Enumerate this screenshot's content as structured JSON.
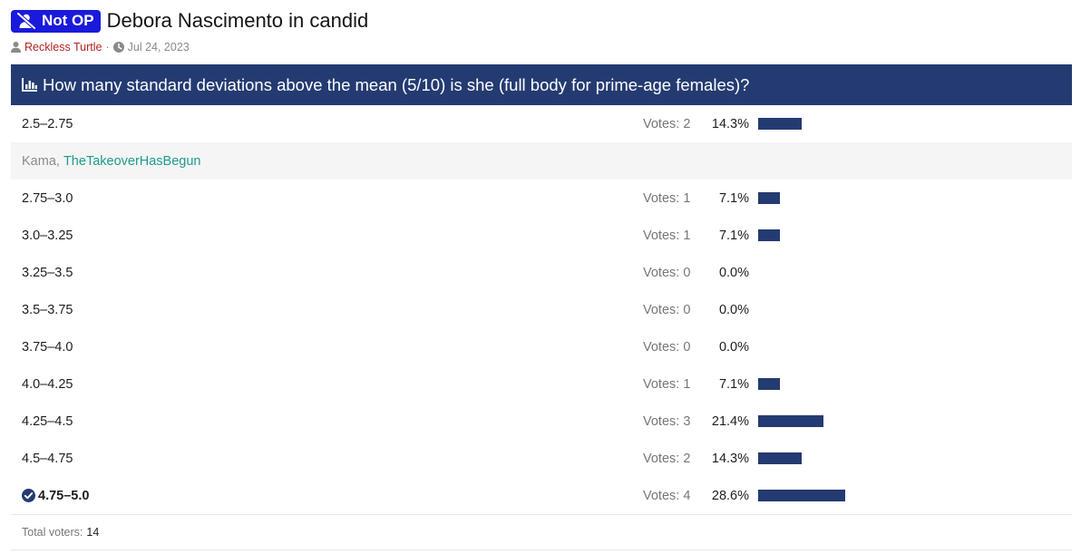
{
  "thread": {
    "prefix": "Not OP",
    "title": "Debora Nascimento in candid",
    "author": "Reckless Turtle",
    "separator": "·",
    "date": "Jul 24, 2023"
  },
  "poll": {
    "question": "How many standard deviations above the mean (5/10) is she (full body for prime-age females)?",
    "votes_label": "Votes:",
    "options": [
      {
        "label": "2.5–2.75",
        "votes": "2",
        "percent": "14.3%",
        "fraction": 0.143,
        "selected": false
      },
      {
        "label": "2.75–3.0",
        "votes": "1",
        "percent": "7.1%",
        "fraction": 0.071,
        "selected": false
      },
      {
        "label": "3.0–3.25",
        "votes": "1",
        "percent": "7.1%",
        "fraction": 0.071,
        "selected": false
      },
      {
        "label": "3.25–3.5",
        "votes": "0",
        "percent": "0.0%",
        "fraction": 0.0,
        "selected": false
      },
      {
        "label": "3.5–3.75",
        "votes": "0",
        "percent": "0.0%",
        "fraction": 0.0,
        "selected": false
      },
      {
        "label": "3.75–4.0",
        "votes": "0",
        "percent": "0.0%",
        "fraction": 0.0,
        "selected": false
      },
      {
        "label": "4.0–4.25",
        "votes": "1",
        "percent": "7.1%",
        "fraction": 0.071,
        "selected": false
      },
      {
        "label": "4.25–4.5",
        "votes": "3",
        "percent": "21.4%",
        "fraction": 0.214,
        "selected": false
      },
      {
        "label": "4.5–4.75",
        "votes": "2",
        "percent": "14.3%",
        "fraction": 0.143,
        "selected": false
      },
      {
        "label": "4.75–5.0",
        "votes": "4",
        "percent": "28.6%",
        "fraction": 0.286,
        "selected": true
      }
    ],
    "voters": {
      "names": [
        "Kama",
        "TheTakeoverHasBegun"
      ],
      "separator": ", "
    },
    "total_label": "Total voters:",
    "total": "14"
  },
  "colors": {
    "header_bg": "#243b72",
    "bar": "#243b72",
    "prefix_badge": "#1a1adb",
    "author": "#b22222",
    "voter_link": "#1f9a8a"
  },
  "icons": {
    "prefix": "user-slash-icon",
    "author": "user-icon",
    "date": "clock-icon",
    "poll": "bar-chart-icon",
    "selected": "check-circle-icon"
  }
}
